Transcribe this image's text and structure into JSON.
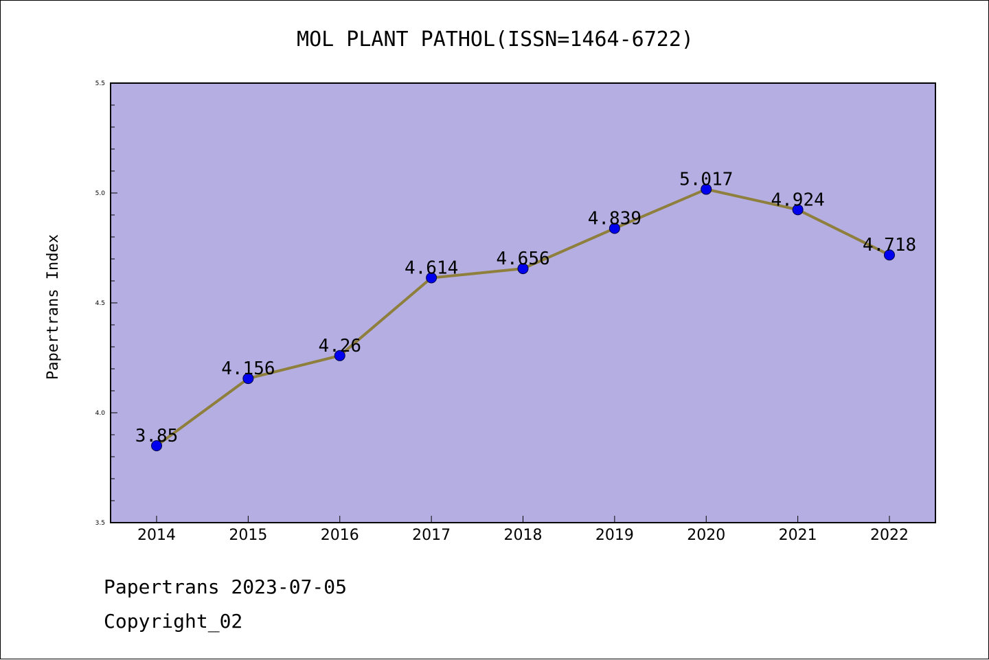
{
  "chart_data": {
    "type": "line",
    "title": "MOL PLANT PATHOL(ISSN=1464-6722)",
    "xlabel": "",
    "ylabel": "Papertrans Index",
    "categories": [
      "2014",
      "2015",
      "2016",
      "2017",
      "2018",
      "2019",
      "2020",
      "2021",
      "2022"
    ],
    "values": [
      3.85,
      4.156,
      4.26,
      4.614,
      4.656,
      4.839,
      5.017,
      4.924,
      4.718
    ],
    "data_labels": [
      "3.85",
      "4.156",
      "4.26",
      "4.614",
      "4.656",
      "4.839",
      "5.017",
      "4.924",
      "4.718"
    ],
    "ylim": [
      3.5,
      5.5
    ],
    "yticks": [
      "3.5",
      "4.0",
      "4.5",
      "5.0",
      "5.5"
    ],
    "grid": false,
    "colors": {
      "plot_background": "#b5aee2",
      "line": "#8f7f3c",
      "marker": "#0000ee"
    }
  },
  "footer": {
    "line1": "Papertrans 2023-07-05",
    "line2": "Copyright_02"
  }
}
